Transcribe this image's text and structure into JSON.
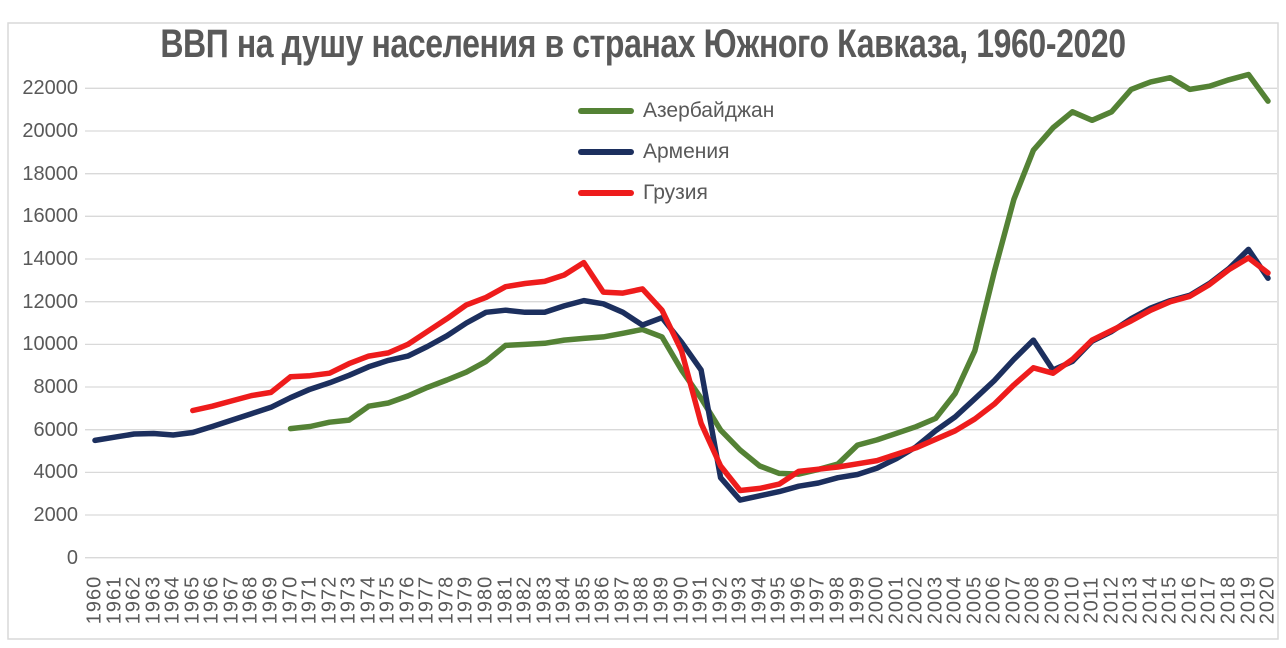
{
  "chart_data": {
    "type": "line",
    "title": "ВВП на душу населения в странах Южного Кавказа, 1960-2020",
    "xlabel": "",
    "ylabel": "",
    "ylim": [
      0,
      23000
    ],
    "yticks": [
      0,
      2000,
      4000,
      6000,
      8000,
      10000,
      12000,
      14000,
      16000,
      18000,
      20000,
      22000
    ],
    "x": [
      1960,
      1961,
      1962,
      1963,
      1964,
      1965,
      1966,
      1967,
      1968,
      1969,
      1970,
      1971,
      1972,
      1973,
      1974,
      1975,
      1976,
      1977,
      1978,
      1979,
      1980,
      1981,
      1982,
      1983,
      1984,
      1985,
      1986,
      1987,
      1988,
      1989,
      1990,
      1991,
      1992,
      1993,
      1994,
      1995,
      1996,
      1997,
      1998,
      1999,
      2000,
      2001,
      2002,
      2003,
      2004,
      2005,
      2006,
      2007,
      2008,
      2009,
      2010,
      2011,
      2012,
      2013,
      2014,
      2015,
      2016,
      2017,
      2018,
      2019,
      2020
    ],
    "grid": true,
    "legend_position": "top-center",
    "series": [
      {
        "name": "Азербайджан",
        "color": "#548235",
        "start_year": 1970,
        "values": [
          6050,
          6150,
          6350,
          6450,
          7100,
          7250,
          7580,
          7980,
          8330,
          8700,
          9200,
          9950,
          10000,
          10050,
          10200,
          10280,
          10350,
          10520,
          10700,
          10350,
          8800,
          7470,
          5980,
          5050,
          4300,
          3950,
          3920,
          4140,
          4390,
          5280,
          5520,
          5830,
          6140,
          6530,
          7700,
          9700,
          13400,
          16800,
          19100,
          20150,
          20900,
          20500,
          20900,
          21950,
          22300,
          22500,
          21950,
          22100,
          22400,
          22650,
          21400
        ]
      },
      {
        "name": "Армения",
        "color": "#1c2f5e",
        "start_year": 1960,
        "values": [
          5500,
          5650,
          5800,
          5820,
          5750,
          5870,
          6150,
          6450,
          6750,
          7050,
          7500,
          7900,
          8200,
          8550,
          8950,
          9250,
          9450,
          9900,
          10400,
          11000,
          11500,
          11600,
          11500,
          11500,
          11800,
          12050,
          11900,
          11500,
          10900,
          11250,
          10100,
          8800,
          3750,
          2700,
          2900,
          3100,
          3350,
          3500,
          3750,
          3900,
          4200,
          4650,
          5200,
          5950,
          6600,
          7450,
          8300,
          9300,
          10200,
          8800,
          9200,
          10150,
          10600,
          11200,
          11700,
          12050,
          12300,
          12850,
          13550,
          14450,
          13100
        ]
      },
      {
        "name": "Грузия",
        "color": "#ee1c1c",
        "start_year": 1965,
        "values": [
          6900,
          7100,
          7350,
          7600,
          7750,
          8480,
          8530,
          8650,
          9100,
          9450,
          9600,
          10000,
          10600,
          11200,
          11850,
          12200,
          12700,
          12850,
          12950,
          13250,
          13830,
          12450,
          12400,
          12600,
          11600,
          9700,
          6300,
          4300,
          3150,
          3250,
          3450,
          4050,
          4150,
          4250,
          4400,
          4550,
          4850,
          5150,
          5550,
          5950,
          6500,
          7200,
          8100,
          8900,
          8650,
          9300,
          10200,
          10650,
          11100,
          11600,
          12000,
          12250,
          12800,
          13500,
          14050,
          13350
        ]
      }
    ],
    "style": {
      "grid_color": "#d9d9d9",
      "border_color": "#d9d9d9",
      "text_color": "#595959",
      "background": "#ffffff"
    }
  }
}
